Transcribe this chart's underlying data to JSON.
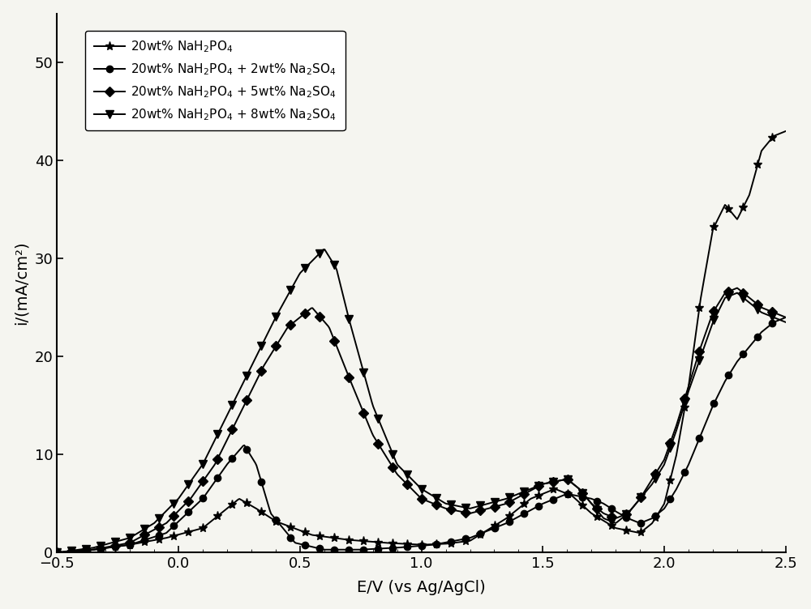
{
  "xlabel": "E/V (vs Ag/AgCl)",
  "ylabel": "i/(mA/cm²)",
  "xlim": [
    -0.5,
    2.5
  ],
  "ylim": [
    0,
    55
  ],
  "xticks": [
    -0.5,
    0.0,
    0.5,
    1.0,
    1.5,
    2.0,
    2.5
  ],
  "yticks": [
    0,
    10,
    20,
    30,
    40,
    50
  ],
  "legend_labels": [
    "20wt% NaH$_2$PO$_4$",
    "20wt% NaH$_2$PO$_4$ + 2wt% Na$_2$SO$_4$",
    "20wt% NaH$_2$PO$_4$ + 5wt% Na$_2$SO$_4$",
    "20wt% NaH$_2$PO$_4$ + 8wt% Na$_2$SO$_4$"
  ],
  "markers": [
    "*",
    "o",
    "D",
    "v"
  ],
  "line_color": "#000000",
  "background_color": "#f5f5f0",
  "figsize": [
    10.0,
    7.52
  ],
  "dpi": 100
}
